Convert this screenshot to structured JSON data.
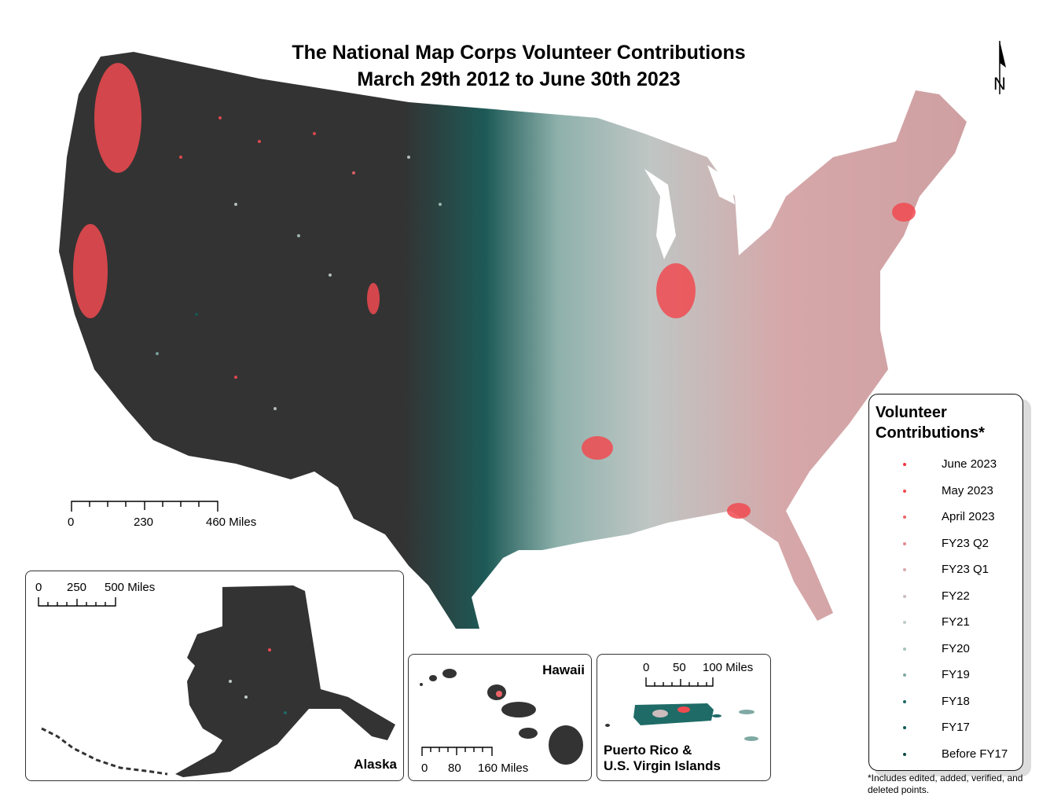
{
  "title": {
    "line1": "The National Map Corps Volunteer Contributions",
    "line2": "March 29th 2012 to June 30th 2023"
  },
  "north_arrow": {
    "label": "N",
    "icon": "north-arrow-icon"
  },
  "colors": {
    "land": "#333333",
    "state_border": "#6e6e6e",
    "background": "#ffffff"
  },
  "main_scale": {
    "ticks": [
      "0",
      "230",
      "460 Miles"
    ]
  },
  "insets": {
    "alaska": {
      "label": "Alaska",
      "scale": [
        "0",
        "250",
        "500 Miles"
      ]
    },
    "hawaii": {
      "label": "Hawaii",
      "scale": [
        "0",
        "80",
        "160 Miles"
      ]
    },
    "puerto_rico": {
      "label_line1": "Puerto Rico &",
      "label_line2": "U.S. Virgin Islands",
      "scale": [
        "0",
        "50",
        "100 Miles"
      ]
    }
  },
  "legend": {
    "title_line1": "Volunteer",
    "title_line2": "Contributions*",
    "items": [
      {
        "label": "June 2023",
        "color": "#f0333c"
      },
      {
        "label": "May 2023",
        "color": "#f04a50"
      },
      {
        "label": "April 2023",
        "color": "#ee6468"
      },
      {
        "label": "FY23 Q2",
        "color": "#e38a8f"
      },
      {
        "label": "FY23 Q1",
        "color": "#d9aaae"
      },
      {
        "label": "FY22",
        "color": "#ccbcbd"
      },
      {
        "label": "FY21",
        "color": "#bfcbc8"
      },
      {
        "label": "FY20",
        "color": "#a9c2be"
      },
      {
        "label": "FY19",
        "color": "#7fa9a3"
      },
      {
        "label": "FY18",
        "color": "#1f6b67"
      },
      {
        "label": "FY17",
        "color": "#135a57"
      },
      {
        "label": "Before FY17",
        "color": "#0d4a48"
      }
    ],
    "footnote": "*Includes edited, added, verified, and deleted points."
  }
}
